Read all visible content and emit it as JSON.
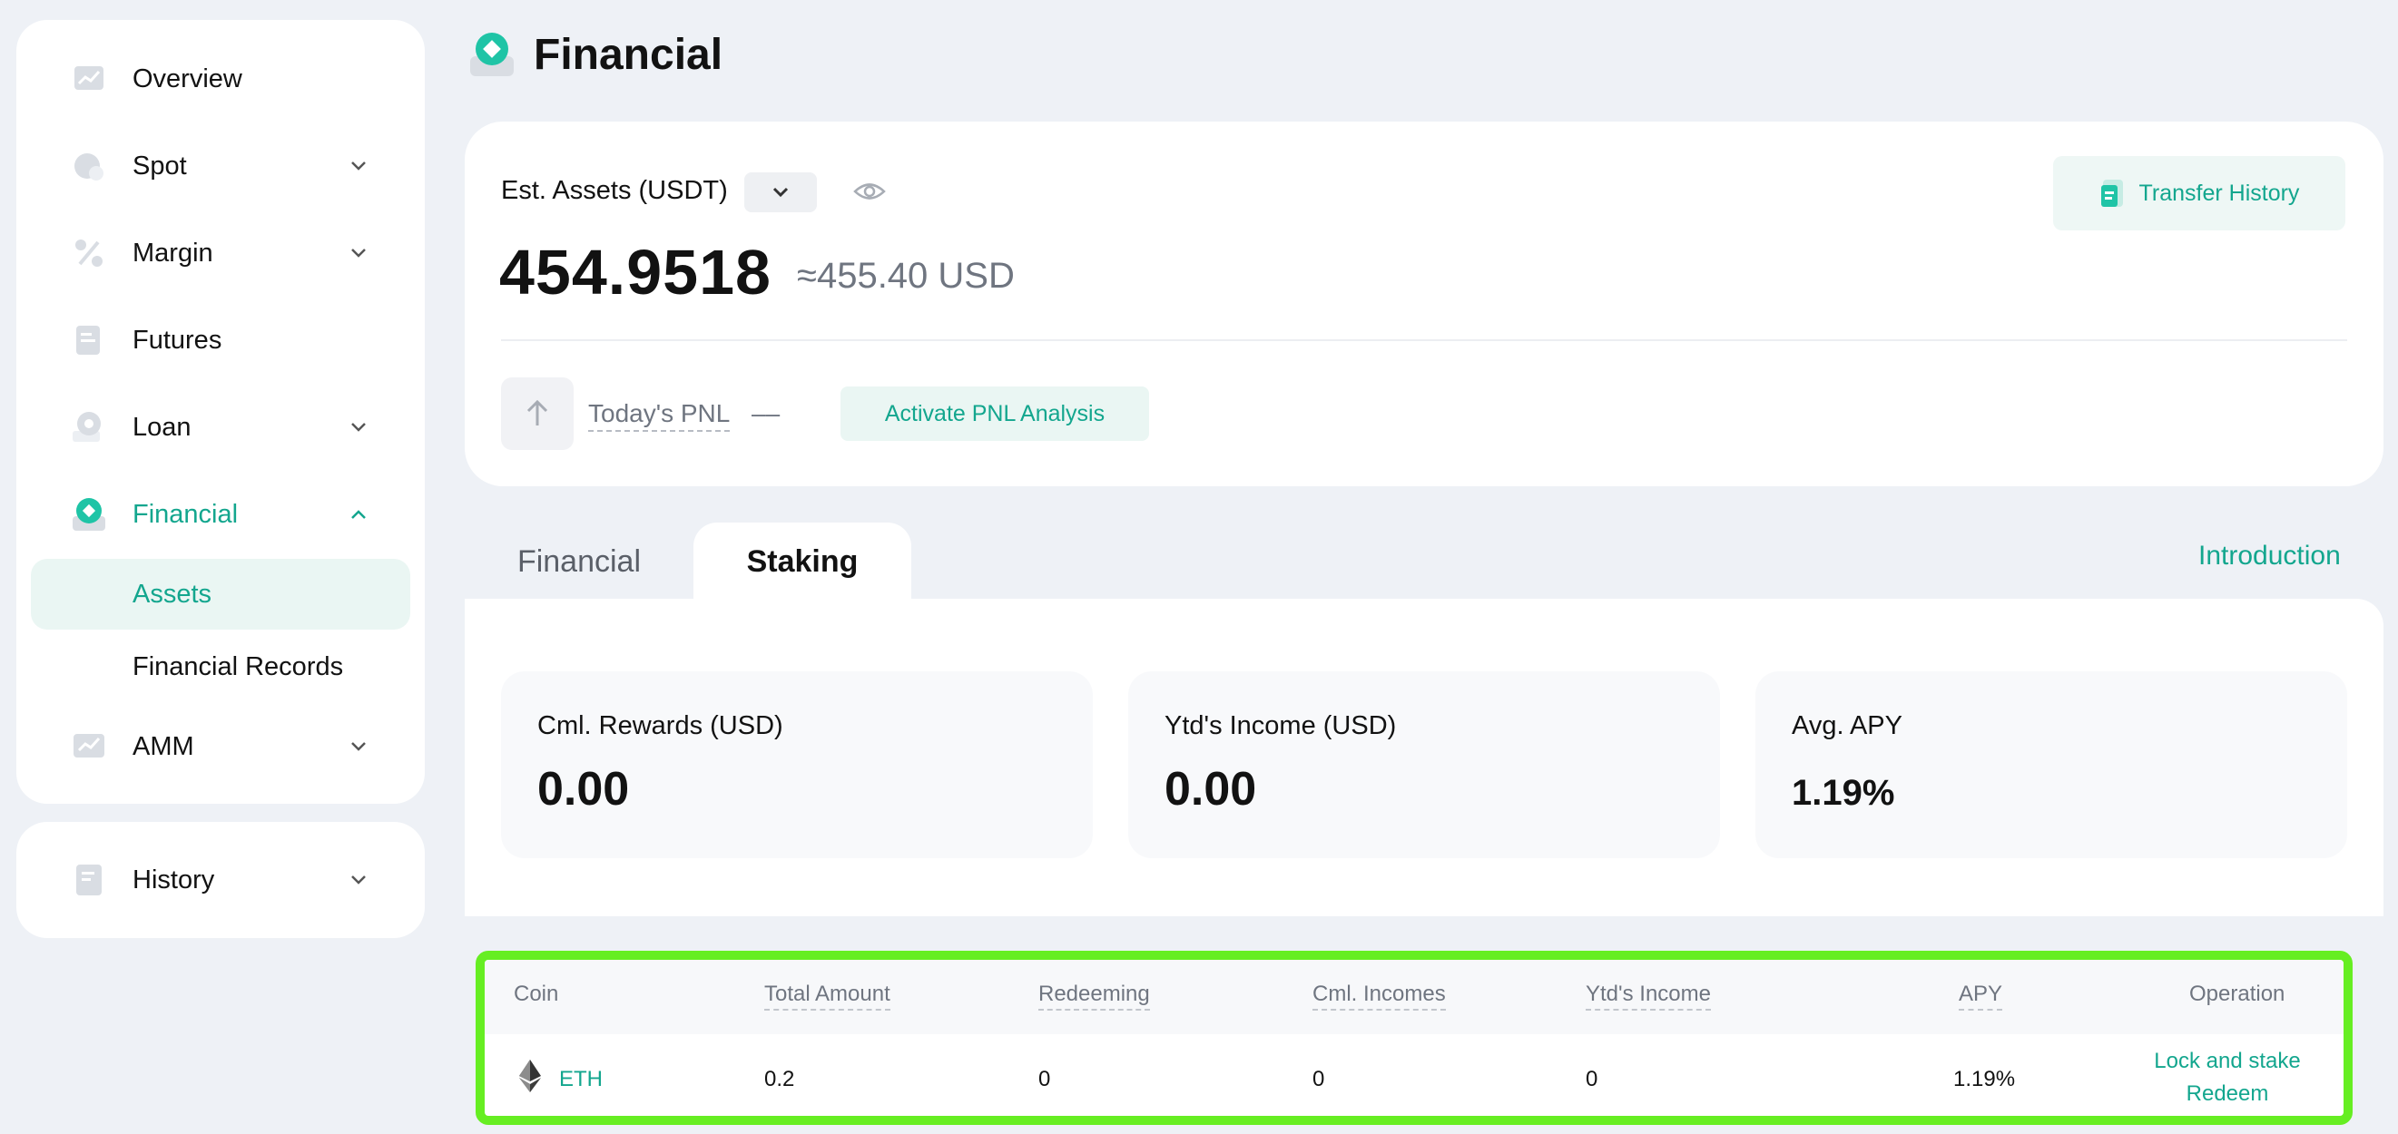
{
  "sidebar": {
    "items": [
      {
        "label": "Overview"
      },
      {
        "label": "Spot"
      },
      {
        "label": "Margin"
      },
      {
        "label": "Futures"
      },
      {
        "label": "Loan"
      },
      {
        "label": "Financial"
      },
      {
        "label": "AMM"
      }
    ],
    "financial_sub": [
      {
        "label": "Assets"
      },
      {
        "label": "Financial Records"
      }
    ],
    "history": {
      "label": "History"
    }
  },
  "page": {
    "title": "Financial"
  },
  "assets": {
    "est_label": "Est. Assets (USDT)",
    "balance": "454.9518",
    "balance_usd": "≈455.40 USD",
    "transfer_history": "Transfer History",
    "pnl_label": "Today's PNL",
    "pnl_value": "––",
    "activate_pnl": "Activate PNL Analysis"
  },
  "tabs": {
    "financial": "Financial",
    "staking": "Staking",
    "introduction": "Introduction"
  },
  "stats": [
    {
      "label": "Cml. Rewards (USD)",
      "value": "0.00"
    },
    {
      "label": "Ytd's Income (USD)",
      "value": "0.00"
    },
    {
      "label": "Avg. APY",
      "value": "1.19%"
    }
  ],
  "table": {
    "headers": [
      "Coin",
      "Total Amount",
      "Redeeming",
      "Cml. Incomes",
      "Ytd's Income",
      "APY",
      "Operation"
    ],
    "rows": [
      {
        "coin": "ETH",
        "total_amount": "0.2",
        "redeeming": "0",
        "cml_incomes": "0",
        "ytd_income": "0",
        "apy": "1.19%",
        "op_lock": "Lock and stake",
        "op_redeem": "Redeem"
      }
    ]
  },
  "colors": {
    "accent": "#13a68e",
    "background": "#eef1f6",
    "highlight_border": "#66ee22"
  },
  "icons": [
    "chart-icon",
    "spot-icon",
    "margin-icon",
    "futures-icon",
    "loan-icon",
    "financial-icon",
    "amm-icon",
    "history-icon",
    "chevron-down-icon",
    "chevron-up-icon",
    "eye-icon",
    "transfer-icon",
    "arrow-up-icon",
    "eth-icon"
  ]
}
